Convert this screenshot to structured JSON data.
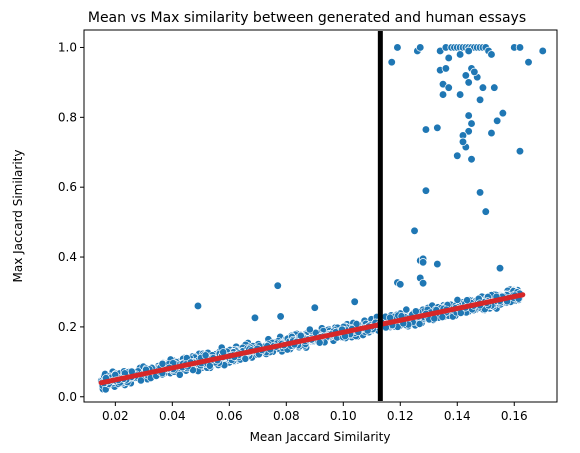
{
  "chart_data": {
    "type": "scatter",
    "title": "Mean vs Max similarity between generated and human essays",
    "xlabel": "Mean Jaccard Similarity",
    "ylabel": "Max Jaccard Similarity",
    "xlim": [
      0.009,
      0.175
    ],
    "ylim": [
      -0.015,
      1.05
    ],
    "xticks": [
      0.02,
      0.04,
      0.06,
      0.08,
      0.1,
      0.12,
      0.14,
      0.16
    ],
    "xtick_labels": [
      "0.02",
      "0.04",
      "0.06",
      "0.08",
      "0.10",
      "0.12",
      "0.14",
      "0.16"
    ],
    "yticks": [
      0.0,
      0.2,
      0.4,
      0.6,
      0.8,
      1.0
    ],
    "ytick_labels": [
      "0.0",
      "0.2",
      "0.4",
      "0.6",
      "0.8",
      "1.0"
    ],
    "grid": false,
    "colors": {
      "points": "#1f77b4",
      "trend": "#d62728",
      "vline": "#000000"
    },
    "vertical_line_x": 0.113,
    "trend_line": {
      "x": [
        0.015,
        0.163
      ],
      "y": [
        0.04,
        0.292
      ]
    },
    "main_band": {
      "x_start": 0.015,
      "x_end": 0.162,
      "slope": 1.7,
      "intercept": 0.0155,
      "spread": 0.016
    },
    "outliers": [
      {
        "x": 0.049,
        "y": 0.26
      },
      {
        "x": 0.077,
        "y": 0.318
      },
      {
        "x": 0.104,
        "y": 0.272
      },
      {
        "x": 0.09,
        "y": 0.255
      },
      {
        "x": 0.069,
        "y": 0.226
      },
      {
        "x": 0.078,
        "y": 0.23
      },
      {
        "x": 0.117,
        "y": 0.958
      },
      {
        "x": 0.119,
        "y": 1.0
      },
      {
        "x": 0.126,
        "y": 0.99
      },
      {
        "x": 0.127,
        "y": 1.0
      },
      {
        "x": 0.134,
        "y": 0.99
      },
      {
        "x": 0.136,
        "y": 1.0
      },
      {
        "x": 0.137,
        "y": 0.97
      },
      {
        "x": 0.138,
        "y": 1.0
      },
      {
        "x": 0.139,
        "y": 1.0
      },
      {
        "x": 0.14,
        "y": 1.0
      },
      {
        "x": 0.141,
        "y": 1.0
      },
      {
        "x": 0.142,
        "y": 1.0
      },
      {
        "x": 0.143,
        "y": 1.0
      },
      {
        "x": 0.144,
        "y": 1.0
      },
      {
        "x": 0.145,
        "y": 1.0
      },
      {
        "x": 0.146,
        "y": 1.0
      },
      {
        "x": 0.147,
        "y": 1.0
      },
      {
        "x": 0.148,
        "y": 1.0
      },
      {
        "x": 0.149,
        "y": 1.0
      },
      {
        "x": 0.15,
        "y": 1.0
      },
      {
        "x": 0.151,
        "y": 0.99
      },
      {
        "x": 0.152,
        "y": 0.98
      },
      {
        "x": 0.16,
        "y": 1.0
      },
      {
        "x": 0.162,
        "y": 1.0
      },
      {
        "x": 0.165,
        "y": 0.958
      },
      {
        "x": 0.17,
        "y": 0.99
      },
      {
        "x": 0.141,
        "y": 0.98
      },
      {
        "x": 0.144,
        "y": 0.99
      },
      {
        "x": 0.134,
        "y": 0.935
      },
      {
        "x": 0.136,
        "y": 0.94
      },
      {
        "x": 0.143,
        "y": 0.92
      },
      {
        "x": 0.145,
        "y": 0.94
      },
      {
        "x": 0.135,
        "y": 0.895
      },
      {
        "x": 0.147,
        "y": 0.915
      },
      {
        "x": 0.144,
        "y": 0.9
      },
      {
        "x": 0.137,
        "y": 0.885
      },
      {
        "x": 0.146,
        "y": 0.93
      },
      {
        "x": 0.149,
        "y": 0.885
      },
      {
        "x": 0.153,
        "y": 0.885
      },
      {
        "x": 0.135,
        "y": 0.865
      },
      {
        "x": 0.141,
        "y": 0.865
      },
      {
        "x": 0.148,
        "y": 0.85
      },
      {
        "x": 0.144,
        "y": 0.805
      },
      {
        "x": 0.156,
        "y": 0.812
      },
      {
        "x": 0.129,
        "y": 0.765
      },
      {
        "x": 0.133,
        "y": 0.77
      },
      {
        "x": 0.144,
        "y": 0.76
      },
      {
        "x": 0.145,
        "y": 0.782
      },
      {
        "x": 0.152,
        "y": 0.755
      },
      {
        "x": 0.154,
        "y": 0.79
      },
      {
        "x": 0.142,
        "y": 0.748
      },
      {
        "x": 0.143,
        "y": 0.715
      },
      {
        "x": 0.142,
        "y": 0.73
      },
      {
        "x": 0.14,
        "y": 0.69
      },
      {
        "x": 0.145,
        "y": 0.68
      },
      {
        "x": 0.162,
        "y": 0.703
      },
      {
        "x": 0.129,
        "y": 0.59
      },
      {
        "x": 0.148,
        "y": 0.585
      },
      {
        "x": 0.15,
        "y": 0.53
      },
      {
        "x": 0.125,
        "y": 0.475
      },
      {
        "x": 0.127,
        "y": 0.39
      },
      {
        "x": 0.128,
        "y": 0.395
      },
      {
        "x": 0.128,
        "y": 0.385
      },
      {
        "x": 0.127,
        "y": 0.34
      },
      {
        "x": 0.133,
        "y": 0.38
      },
      {
        "x": 0.128,
        "y": 0.325
      },
      {
        "x": 0.119,
        "y": 0.327
      },
      {
        "x": 0.12,
        "y": 0.322
      },
      {
        "x": 0.155,
        "y": 0.368
      }
    ]
  }
}
